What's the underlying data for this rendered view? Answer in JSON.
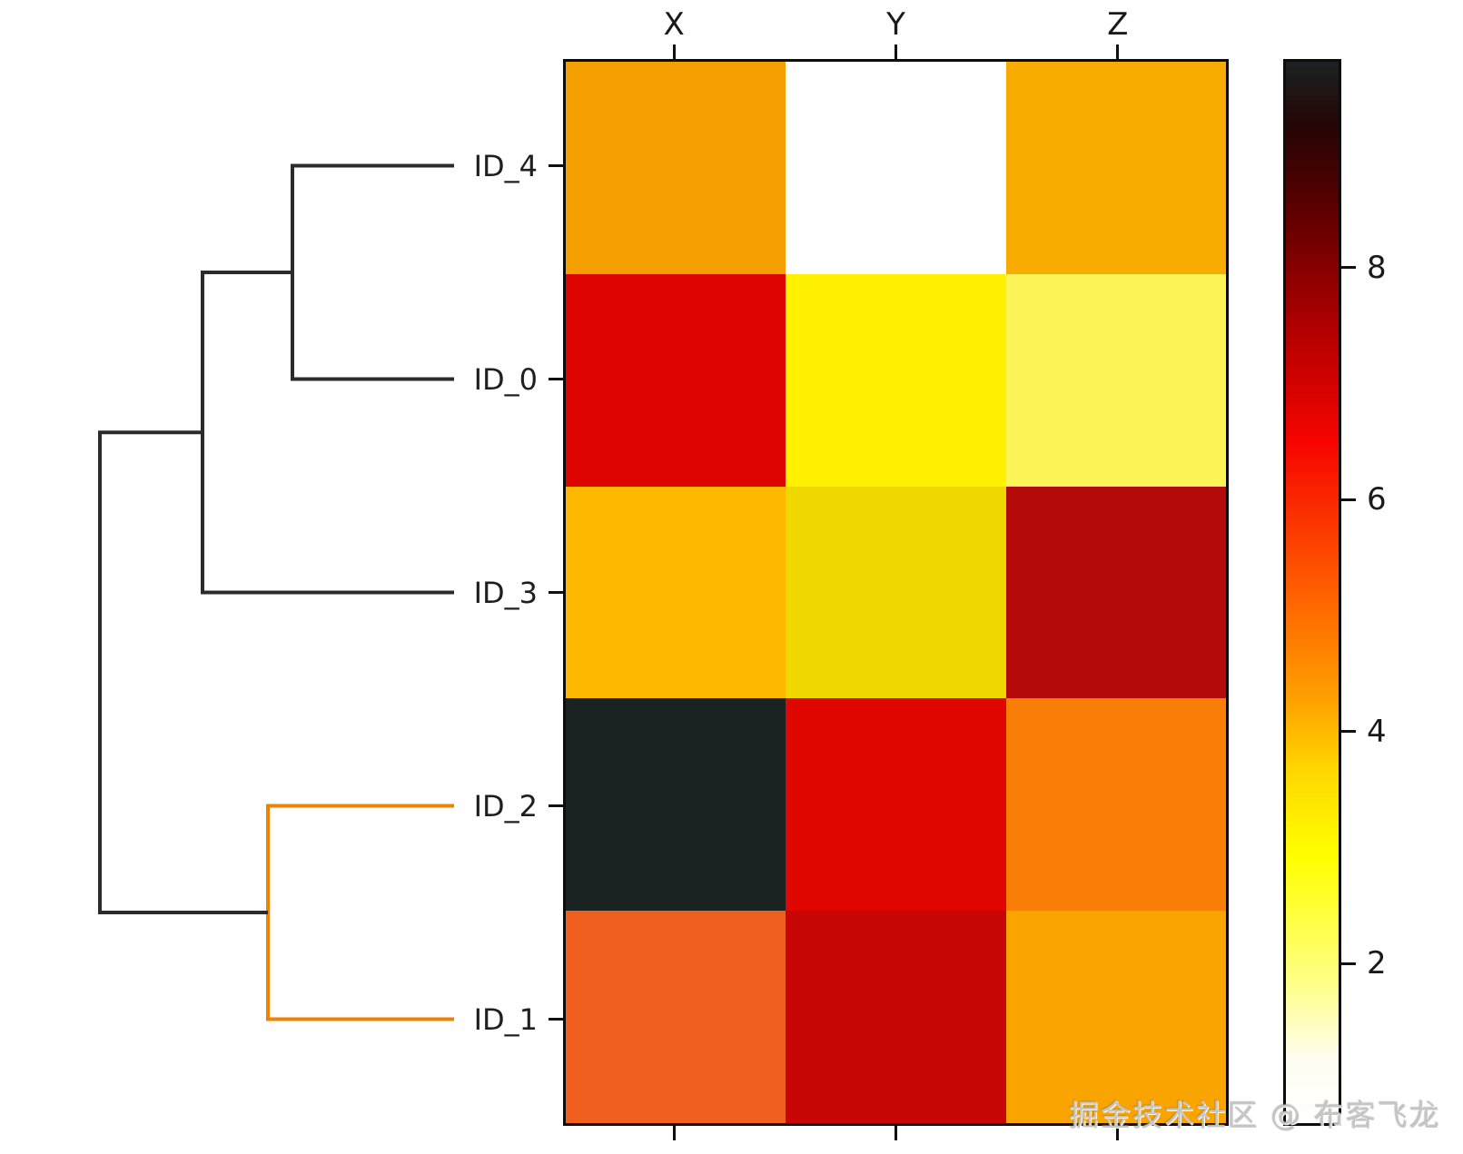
{
  "watermark": {
    "text": "掘金技术社区 @ 布客飞龙",
    "color": "#c6c6c6"
  },
  "chart_data": {
    "type": "heatmap",
    "title": "",
    "columns": [
      "X",
      "Y",
      "Z"
    ],
    "rows": [
      "ID_4",
      "ID_0",
      "ID_3",
      "ID_2",
      "ID_1"
    ],
    "values": [
      [
        4.3,
        0.6,
        4.1
      ],
      [
        6.7,
        3.0,
        2.1
      ],
      [
        3.9,
        3.5,
        7.4
      ],
      [
        9.7,
        6.8,
        4.7
      ],
      [
        5.1,
        7.2,
        4.2
      ]
    ],
    "cell_colors": [
      [
        "#f59e00",
        "#ffffff",
        "#f8ac00"
      ],
      [
        "#de0400",
        "#fff100",
        "#fcf558"
      ],
      [
        "#ffb800",
        "#efd700",
        "#b50a0a"
      ],
      [
        "#1b2222",
        "#e00600",
        "#f87e07"
      ],
      [
        "#f05f1e",
        "#c80606",
        "#faa400"
      ]
    ],
    "colormap": "hot_r",
    "vmin": 0.6,
    "vmax": 9.8,
    "grid": false,
    "colorbar": {
      "position": "right",
      "ticks": [
        8,
        6,
        4,
        2
      ],
      "gradient": [
        {
          "pos": 0.0,
          "color": "#ffffff"
        },
        {
          "pos": 0.06,
          "color": "#fffdf0"
        },
        {
          "pos": 0.13,
          "color": "#ffff8a"
        },
        {
          "pos": 0.25,
          "color": "#ffff00"
        },
        {
          "pos": 0.33,
          "color": "#ffd800"
        },
        {
          "pos": 0.4,
          "color": "#ffa000"
        },
        {
          "pos": 0.5,
          "color": "#ff5f00"
        },
        {
          "pos": 0.64,
          "color": "#f70500"
        },
        {
          "pos": 0.75,
          "color": "#b00000"
        },
        {
          "pos": 0.87,
          "color": "#560000"
        },
        {
          "pos": 0.94,
          "color": "#250505"
        },
        {
          "pos": 1.0,
          "color": "#1b2222"
        }
      ]
    },
    "dendrogram": {
      "orientation": "left",
      "leaf_order": [
        "ID_4",
        "ID_0",
        "ID_3",
        "ID_2",
        "ID_1"
      ],
      "link_color_default": "#2b2b2b",
      "link_color_cluster": "#ef8200",
      "links": [
        {
          "join": [
            "ID_4",
            "ID_0"
          ],
          "color": "#2b2b2b",
          "points": [
            [
              500,
              182.5
            ],
            [
              322,
              182.5
            ],
            [
              322,
              417.5
            ],
            [
              500,
              417.5
            ]
          ]
        },
        {
          "join": [
            "ID_4+ID_0",
            "ID_3"
          ],
          "color": "#2b2b2b",
          "points": [
            [
              322,
              300
            ],
            [
              223,
              300
            ],
            [
              223,
              652.5
            ],
            [
              500,
              652.5
            ]
          ]
        },
        {
          "join": [
            "ID_2",
            "ID_1"
          ],
          "color": "#ef8200",
          "points": [
            [
              500,
              887.5
            ],
            [
              295,
              887.5
            ],
            [
              295,
              1122.5
            ],
            [
              500,
              1122.5
            ]
          ]
        },
        {
          "join": [
            "ID_4+ID_0+ID_3",
            "ID_2+ID_1"
          ],
          "color": "#2b2b2b",
          "points": [
            [
              223,
              476.2
            ],
            [
              110,
              476.2
            ],
            [
              110,
              1005
            ],
            [
              295,
              1005
            ]
          ]
        }
      ]
    }
  }
}
